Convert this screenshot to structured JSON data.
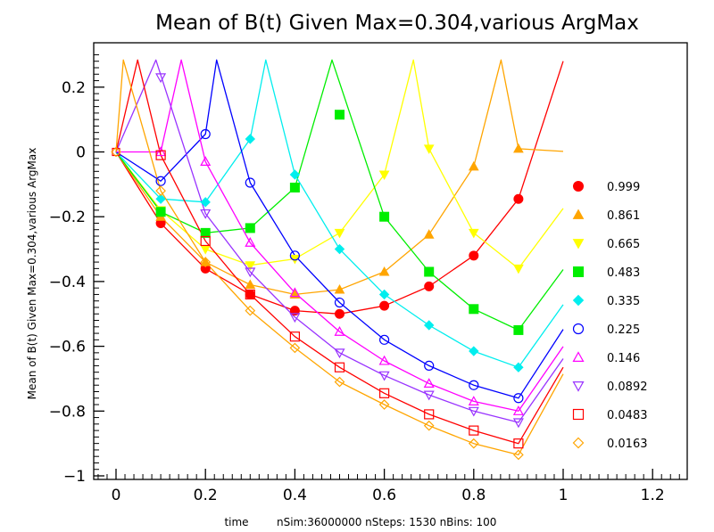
{
  "chart_data": {
    "type": "line",
    "title": "Mean of B(t) Given Max=0.304,various ArgMax",
    "ylabel": "Mean of B(t) Given Max=0.304,various ArgMax",
    "xlabel": "time",
    "footnote": "nSim:36000000 nSteps: 1530 nBins: 100",
    "xlim": [
      -0.05,
      1.28
    ],
    "ylim": [
      -1.0,
      0.32
    ],
    "xticks": [
      0,
      0.2,
      0.4,
      0.6,
      0.8,
      1.0,
      1.2
    ],
    "xtick_labels": [
      "0",
      "0.2",
      "0.4",
      "0.6",
      "0.8",
      "1",
      "1.2"
    ],
    "yticks": [
      0.2,
      0,
      -0.2,
      -0.4,
      -0.6,
      -0.8,
      -1.0
    ],
    "ytick_labels": [
      "0.2",
      "0",
      "−0.2",
      "−0.4",
      "−0.6",
      "−0.8",
      "−1"
    ],
    "max_value": 0.304,
    "grid": false,
    "legend_position": "right",
    "series": [
      {
        "name": "0.999",
        "argmax": 0.999,
        "color": "#ff0000",
        "marker": "filled-circle",
        "points": [
          [
            0.1,
            -0.22
          ],
          [
            0.2,
            -0.36
          ],
          [
            0.3,
            -0.44
          ],
          [
            0.4,
            -0.49
          ],
          [
            0.5,
            -0.5
          ],
          [
            0.6,
            -0.475
          ],
          [
            0.7,
            -0.415
          ],
          [
            0.8,
            -0.32
          ],
          [
            0.9,
            -0.145
          ]
        ]
      },
      {
        "name": "0.861",
        "argmax": 0.861,
        "color": "#ffa500",
        "marker": "filled-triangle-up",
        "points": [
          [
            0.1,
            -0.2
          ],
          [
            0.2,
            -0.34
          ],
          [
            0.3,
            -0.41
          ],
          [
            0.4,
            -0.44
          ],
          [
            0.5,
            -0.425
          ],
          [
            0.6,
            -0.37
          ],
          [
            0.7,
            -0.255
          ],
          [
            0.8,
            -0.045
          ],
          [
            0.9,
            0.01
          ]
        ]
      },
      {
        "name": "0.665",
        "argmax": 0.665,
        "color": "#ffff00",
        "marker": "filled-triangle-down",
        "points": [
          [
            0.1,
            -0.18
          ],
          [
            0.2,
            -0.3
          ],
          [
            0.3,
            -0.35
          ],
          [
            0.4,
            -0.33
          ],
          [
            0.5,
            -0.25
          ],
          [
            0.6,
            -0.07
          ],
          [
            0.7,
            0.01
          ],
          [
            0.8,
            -0.25
          ],
          [
            0.9,
            -0.36
          ]
        ]
      },
      {
        "name": "0.483",
        "argmax": 0.483,
        "color": "#00ee00",
        "marker": "filled-square",
        "points": [
          [
            0.1,
            -0.185
          ],
          [
            0.2,
            -0.25
          ],
          [
            0.3,
            -0.235
          ],
          [
            0.4,
            -0.11
          ],
          [
            0.5,
            0.115
          ],
          [
            0.6,
            -0.2
          ],
          [
            0.7,
            -0.37
          ],
          [
            0.8,
            -0.485
          ],
          [
            0.9,
            -0.55
          ]
        ]
      },
      {
        "name": "0.335",
        "argmax": 0.335,
        "color": "#00eeee",
        "marker": "filled-diamond",
        "points": [
          [
            0.1,
            -0.145
          ],
          [
            0.2,
            -0.155
          ],
          [
            0.3,
            0.04
          ],
          [
            0.4,
            -0.07
          ],
          [
            0.5,
            -0.3
          ],
          [
            0.6,
            -0.44
          ],
          [
            0.7,
            -0.535
          ],
          [
            0.8,
            -0.615
          ],
          [
            0.9,
            -0.665
          ]
        ]
      },
      {
        "name": "0.225",
        "argmax": 0.225,
        "color": "#0000ff",
        "marker": "open-circle",
        "points": [
          [
            0.1,
            -0.09
          ],
          [
            0.2,
            0.055
          ],
          [
            0.3,
            -0.095
          ],
          [
            0.4,
            -0.32
          ],
          [
            0.5,
            -0.465
          ],
          [
            0.6,
            -0.58
          ],
          [
            0.7,
            -0.66
          ],
          [
            0.8,
            -0.72
          ],
          [
            0.9,
            -0.76
          ]
        ]
      },
      {
        "name": "0.146",
        "argmax": 0.146,
        "color": "#ff00ff",
        "marker": "open-triangle-up",
        "points": [
          [
            0.1,
            0.0
          ],
          [
            0.2,
            -0.03
          ],
          [
            0.3,
            -0.28
          ],
          [
            0.4,
            -0.435
          ],
          [
            0.5,
            -0.555
          ],
          [
            0.6,
            -0.645
          ],
          [
            0.7,
            -0.715
          ],
          [
            0.8,
            -0.77
          ],
          [
            0.9,
            -0.8
          ]
        ]
      },
      {
        "name": "0.0892",
        "argmax": 0.0892,
        "color": "#9933ff",
        "marker": "open-triangle-down",
        "points": [
          [
            0.1,
            0.23
          ],
          [
            0.2,
            -0.19
          ],
          [
            0.3,
            -0.37
          ],
          [
            0.4,
            -0.51
          ],
          [
            0.5,
            -0.62
          ],
          [
            0.6,
            -0.69
          ],
          [
            0.7,
            -0.75
          ],
          [
            0.8,
            -0.8
          ],
          [
            0.9,
            -0.835
          ]
        ]
      },
      {
        "name": "0.0483",
        "argmax": 0.0483,
        "color": "#ff0000",
        "marker": "open-square",
        "points": [
          [
            0.1,
            -0.01
          ],
          [
            0.2,
            -0.275
          ],
          [
            0.3,
            -0.44
          ],
          [
            0.4,
            -0.57
          ],
          [
            0.5,
            -0.665
          ],
          [
            0.6,
            -0.745
          ],
          [
            0.7,
            -0.81
          ],
          [
            0.8,
            -0.86
          ],
          [
            0.9,
            -0.9
          ]
        ]
      },
      {
        "name": "0.0163",
        "argmax": 0.0163,
        "color": "#ffa500",
        "marker": "open-diamond",
        "points": [
          [
            0.1,
            -0.12
          ],
          [
            0.2,
            -0.34
          ],
          [
            0.3,
            -0.49
          ],
          [
            0.4,
            -0.605
          ],
          [
            0.5,
            -0.71
          ],
          [
            0.6,
            -0.78
          ],
          [
            0.7,
            -0.845
          ],
          [
            0.8,
            -0.9
          ],
          [
            0.9,
            -0.935
          ]
        ]
      }
    ]
  }
}
